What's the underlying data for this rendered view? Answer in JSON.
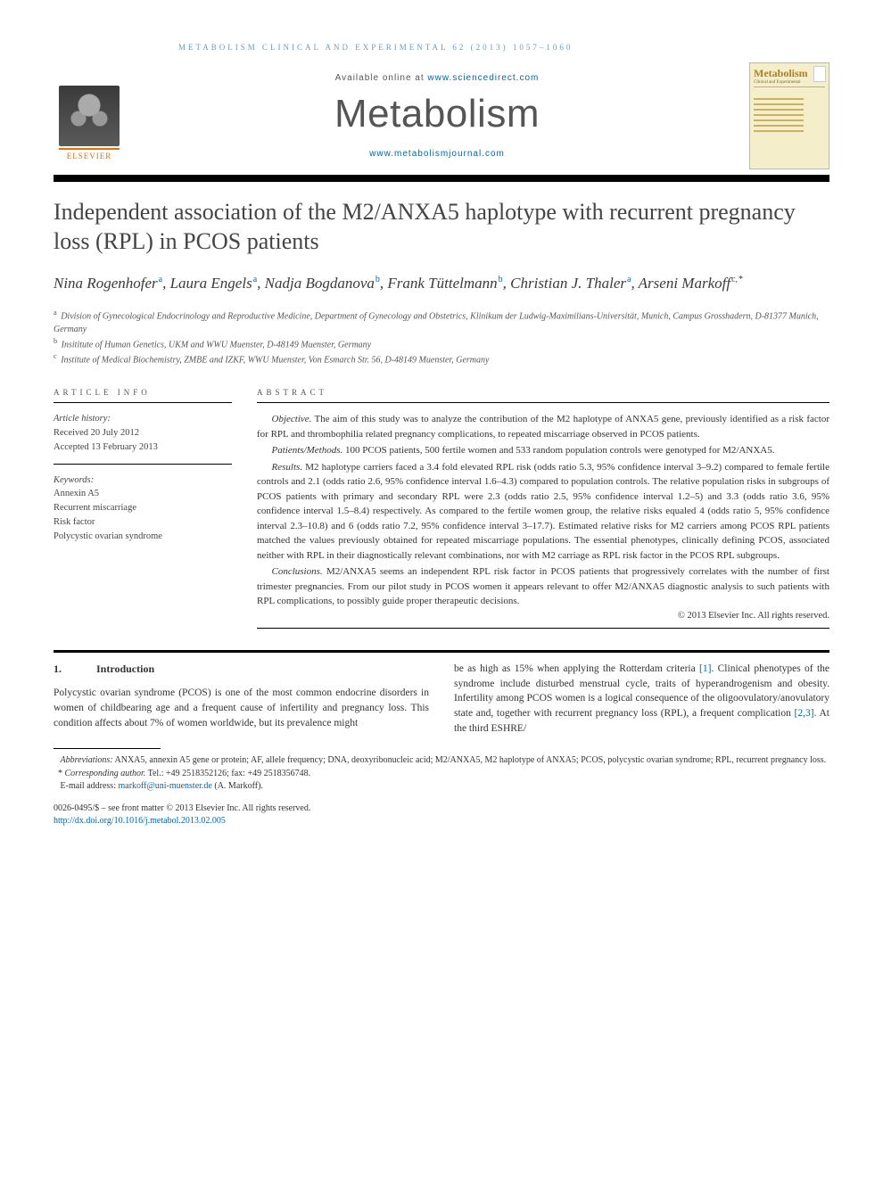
{
  "running_head": "METABOLISM CLINICAL AND EXPERIMENTAL 62 (2013) 1057–1060",
  "header": {
    "publisher": "ELSEVIER",
    "available_prefix": "Available online at ",
    "available_link": "www.sciencedirect.com",
    "journal_name": "Metabolism",
    "journal_link": "www.metabolismjournal.com",
    "cover_brand": "Metabolism",
    "cover_sub": "Clinical and Experimental"
  },
  "title": "Independent association of the M2/ANXA5 haplotype with recurrent pregnancy loss (RPL) in PCOS patients",
  "authors_html": [
    {
      "name": "Nina Rogenhofer",
      "sup": "a"
    },
    {
      "name": "Laura Engels",
      "sup": "a"
    },
    {
      "name": "Nadja Bogdanova",
      "sup": "b"
    },
    {
      "name": "Frank Tüttelmann",
      "sup": "b"
    },
    {
      "name": "Christian J. Thaler",
      "sup": "a"
    },
    {
      "name": "Arseni Markoff",
      "sup": "c,",
      "star": true
    }
  ],
  "affiliations": [
    {
      "sup": "a",
      "text": "Division of Gynecological Endocrinology and Reproductive Medicine, Department of Gynecology and Obstetrics, Klinikum der Ludwig-Maximilians-Universität, Munich, Campus Grosshadern, D-81377 Munich, Germany"
    },
    {
      "sup": "b",
      "text": "Insititute of Human Genetics, UKM and WWU Muenster, D-48149 Muenster, Germany"
    },
    {
      "sup": "c",
      "text": "Institute of Medical Biochemistry, ZMBE and IZKF, WWU Muenster, Von Esmarch Str. 56, D-48149 Muenster, Germany"
    }
  ],
  "article_info": {
    "heading": "ARTICLE INFO",
    "history_label": "Article history:",
    "received": "Received 20 July 2012",
    "accepted": "Accepted 13 February 2013",
    "keywords_label": "Keywords:",
    "keywords": [
      "Annexin A5",
      "Recurrent miscarriage",
      "Risk factor",
      "Polycystic ovarian syndrome"
    ]
  },
  "abstract": {
    "heading": "ABSTRACT",
    "paras": [
      {
        "run_in": "Objective.",
        "text": " The aim of this study was to analyze the contribution of the M2 haplotype of ANXA5 gene, previously identified as a risk factor for RPL and thrombophilia related pregnancy complications, to repeated miscarriage observed in PCOS patients."
      },
      {
        "run_in": "Patients/Methods.",
        "text": " 100 PCOS patients, 500 fertile women and 533 random population controls were genotyped for M2/ANXA5."
      },
      {
        "run_in": "Results.",
        "text": " M2 haplotype carriers faced a 3.4 fold elevated RPL risk (odds ratio 5.3, 95% confidence interval 3–9.2) compared to female fertile controls and 2.1 (odds ratio 2.6, 95% confidence interval 1.6–4.3) compared to population controls. The relative population risks in subgroups of PCOS patients with primary and secondary RPL were 2.3 (odds ratio 2.5, 95% confidence interval 1.2–5) and 3.3 (odds ratio 3.6, 95% confidence interval 1.5–8.4) respectively. As compared to the fertile women group, the relative risks equaled 4 (odds ratio 5, 95% confidence interval 2.3–10.8) and 6 (odds ratio 7.2, 95% confidence interval 3–17.7). Estimated relative risks for M2 carriers among PCOS RPL patients matched the values previously obtained for repeated miscarriage populations. The essential phenotypes, clinically defining PCOS, associated neither with RPL in their diagnostically relevant combinations, nor with M2 carriage as RPL risk factor in the PCOS RPL subgroups."
      },
      {
        "run_in": "Conclusions.",
        "text": " M2/ANXA5 seems an independent RPL risk factor in PCOS patients that progressively correlates with the number of first trimester pregnancies. From our pilot study in PCOS women it appears relevant to offer M2/ANXA5 diagnostic analysis to such patients with RPL complications, to possibly guide proper therapeutic decisions."
      }
    ],
    "copyright": "© 2013 Elsevier Inc. All rights reserved."
  },
  "body": {
    "section_num": "1.",
    "section_title": "Introduction",
    "col1": "Polycystic ovarian syndrome (PCOS) is one of the most common endocrine disorders in women of childbearing age and a frequent cause of infertility and pregnancy loss. This condition affects about 7% of women worldwide, but its prevalence might",
    "col2_a": "be as high as 15% when applying the Rotterdam criteria ",
    "col2_cite1": "[1]",
    "col2_b": ". Clinical phenotypes of the syndrome include disturbed menstrual cycle, traits of hyperandrogenism and obesity. Infertility among PCOS women is a logical consequence of the oligoovulatory/anovulatory state and, together with recurrent pregnancy loss (RPL), a frequent complication ",
    "col2_cite2": "[2,3]",
    "col2_c": ". At the third ESHRE/"
  },
  "footnotes": {
    "abbrev_label": "Abbreviations:",
    "abbrev_text": " ANXA5, annexin A5 gene or protein; AF, allele frequency; DNA, deoxyribonucleic acid; M2/ANXA5, M2 haplotype of ANXA5; PCOS, polycystic ovarian syndrome; RPL, recurrent pregnancy loss.",
    "corr_label": "Corresponding author.",
    "corr_text": " Tel.: +49 2518352126; fax: +49 2518356748.",
    "email_label": "E-mail address: ",
    "email": "markoff@uni-muenster.de",
    "email_tail": " (A. Markoff)."
  },
  "pub": {
    "line1": "0026-0495/$ – see front matter © 2013 Elsevier Inc. All rights reserved.",
    "doi": "http://dx.doi.org/10.1016/j.metabol.2013.02.005"
  },
  "colors": {
    "link": "#0066a8",
    "orange": "#e76f00",
    "head_blue": "#6b9bc0"
  }
}
